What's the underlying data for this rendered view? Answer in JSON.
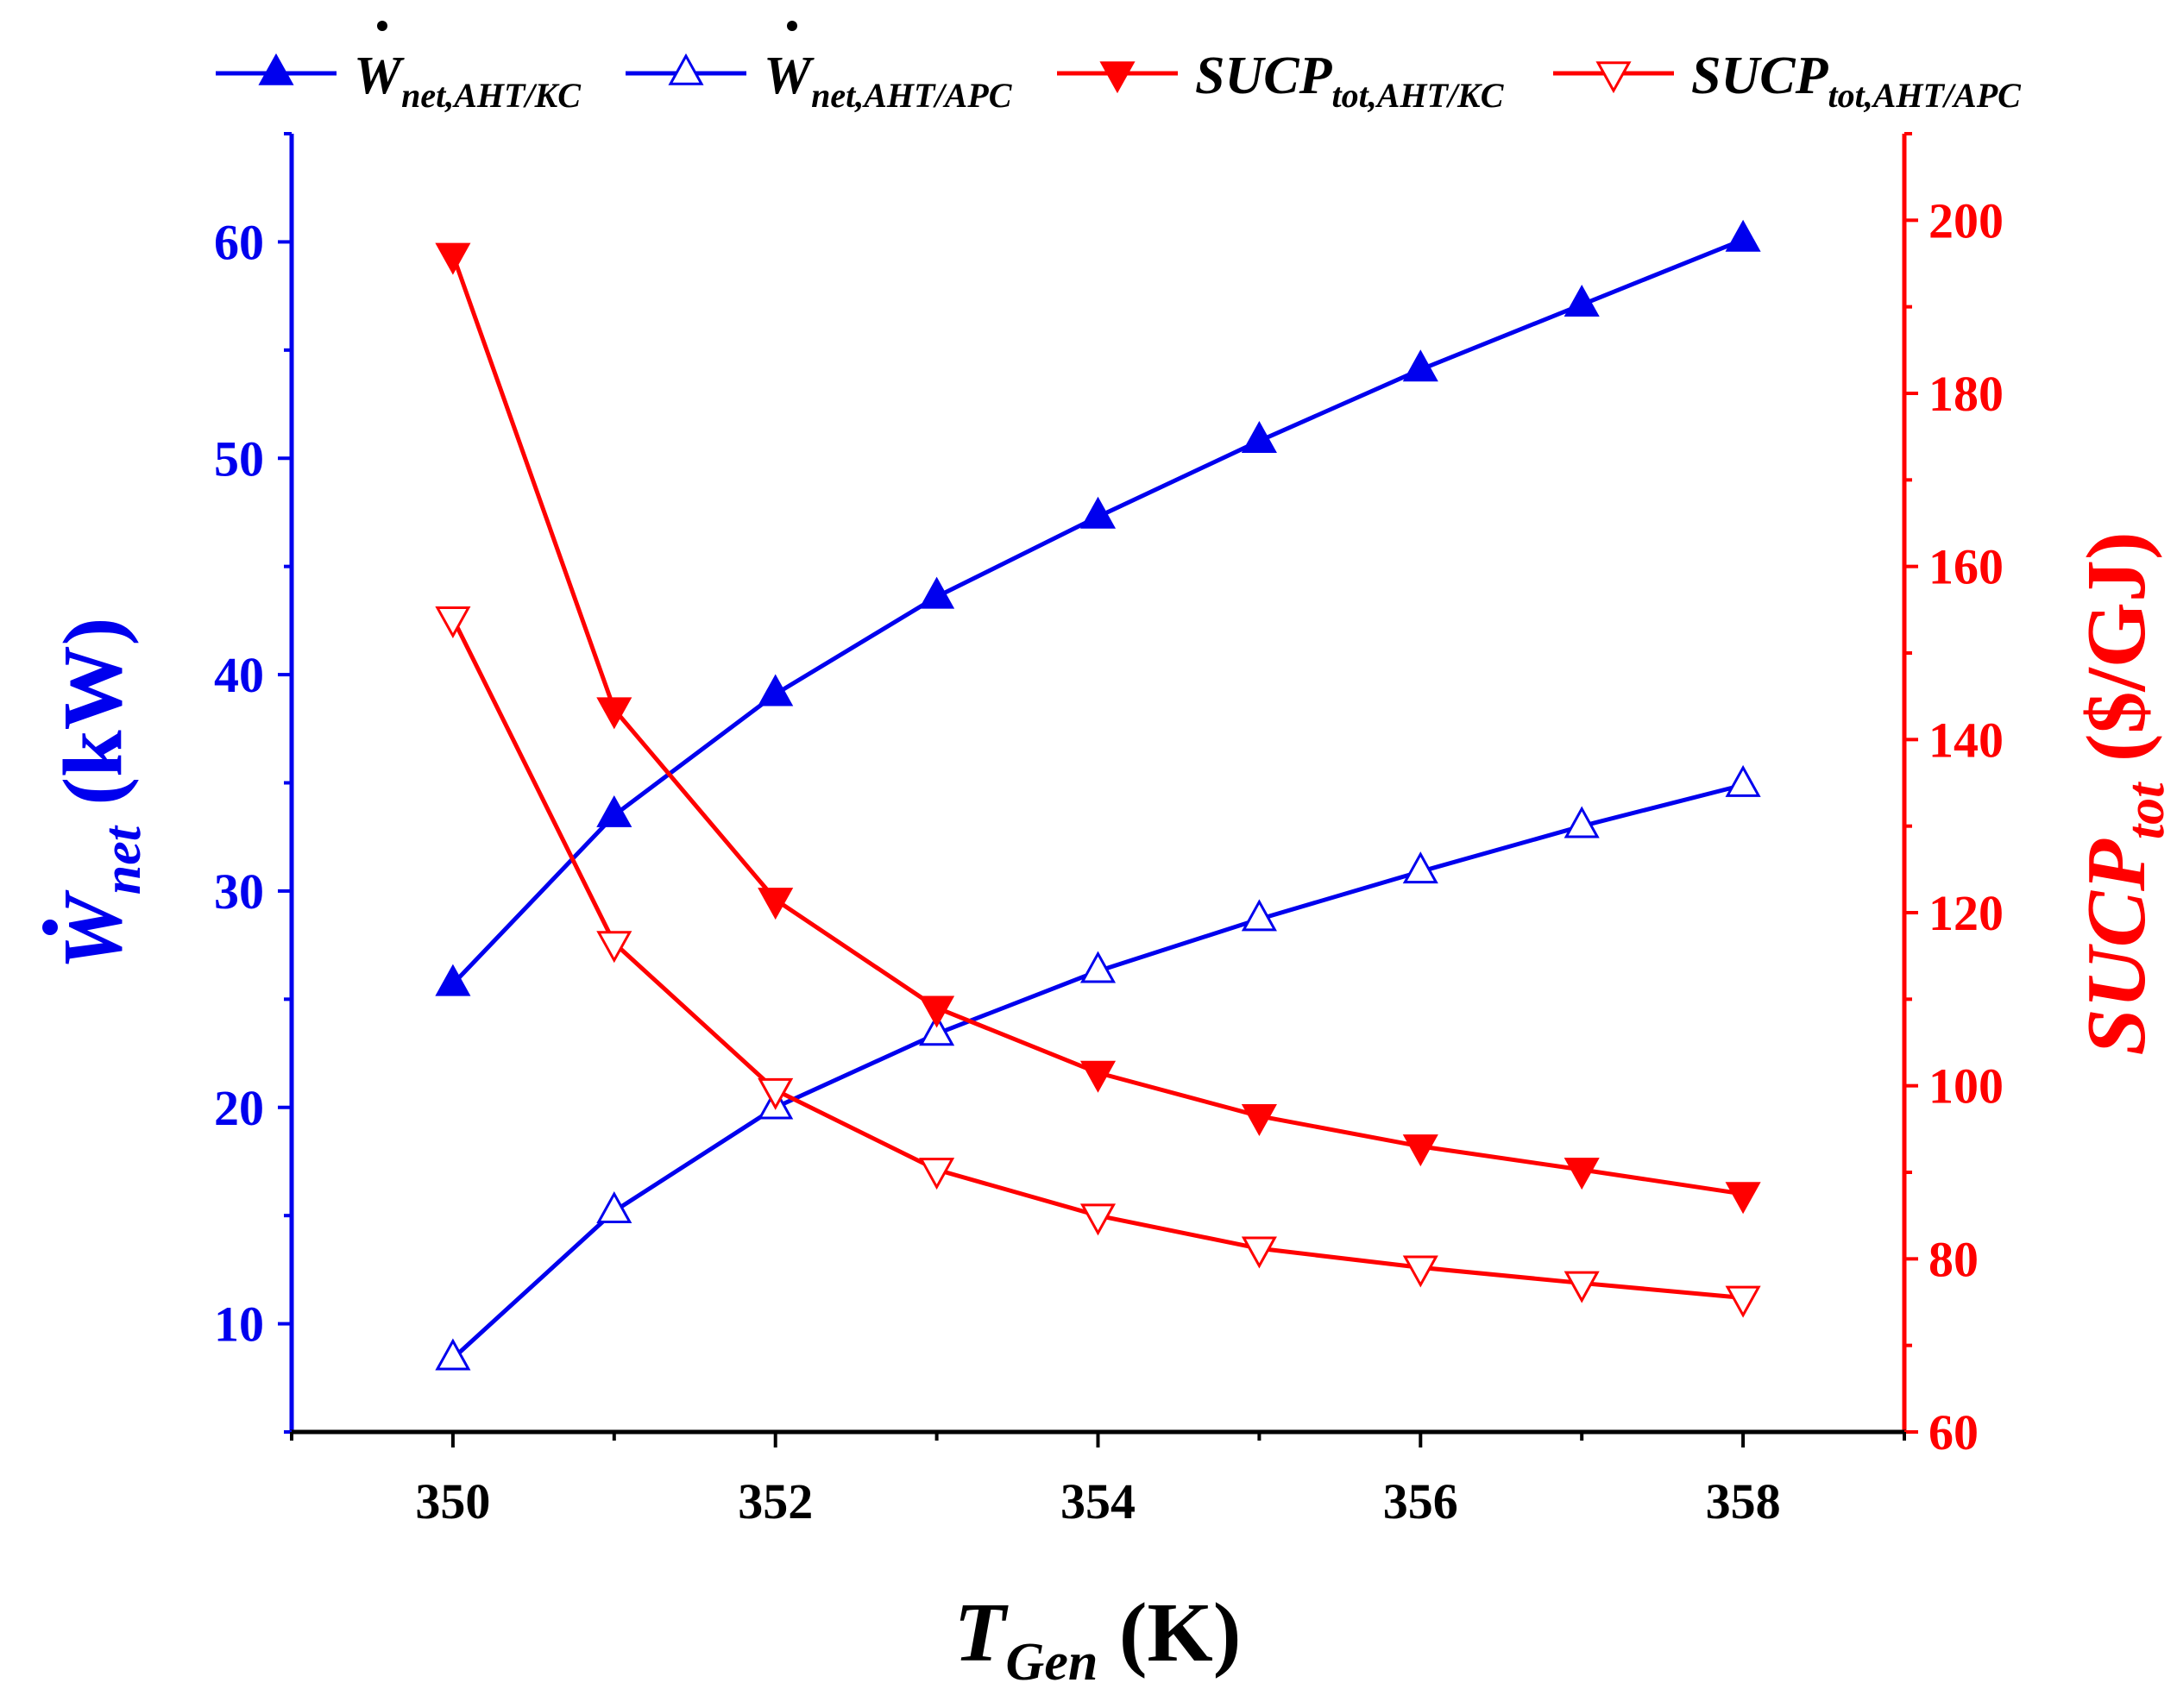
{
  "chart_data": {
    "type": "line",
    "x": [
      350,
      351,
      352,
      353,
      354,
      355,
      356,
      357,
      358
    ],
    "xlim": [
      349,
      359
    ],
    "xticks": [
      "350",
      "352",
      "354",
      "356",
      "358"
    ],
    "xticks_values": [
      350,
      352,
      354,
      356,
      358
    ],
    "xlabel": {
      "main": "T",
      "sub": "Gen",
      "unit": " (K)"
    },
    "y_left": {
      "label": {
        "main": "W",
        "sub": "net",
        "unit": " (kW)"
      },
      "lim": [
        5,
        65
      ],
      "ticks": [
        "10",
        "20",
        "30",
        "40",
        "50",
        "60"
      ],
      "ticks_values": [
        10,
        20,
        30,
        40,
        50,
        60
      ],
      "color": "#0000ee"
    },
    "y_right": {
      "label": {
        "main": "SUCP",
        "sub": "tot",
        "unit": " ($/GJ)"
      },
      "lim": [
        60,
        210
      ],
      "ticks": [
        "60",
        "80",
        "100",
        "120",
        "140",
        "160",
        "180",
        "200"
      ],
      "ticks_values": [
        60,
        80,
        100,
        120,
        140,
        160,
        180,
        200
      ],
      "color": "#ff0000"
    },
    "series": [
      {
        "name": "W",
        "sub": "net,AHT/KC",
        "axis": "left",
        "marker": "triangle-up",
        "filled": true,
        "color": "#0000ee",
        "values": [
          25.7,
          33.5,
          39.1,
          43.6,
          47.3,
          50.8,
          54.1,
          57.1,
          60.1
        ]
      },
      {
        "name": "W",
        "sub": "net,AHT/APC",
        "axis": "left",
        "marker": "triangle-up",
        "filled": false,
        "color": "#0000ee",
        "values": [
          8.4,
          15.2,
          20.0,
          23.4,
          26.3,
          28.7,
          30.9,
          33.0,
          34.9
        ]
      },
      {
        "name": "SUCP",
        "sub": "tot,AHT/KC",
        "axis": "right",
        "marker": "triangle-down",
        "filled": true,
        "color": "#ff0000",
        "values": [
          196,
          143.5,
          121.5,
          109,
          101.5,
          96.5,
          93,
          90.3,
          87.5
        ]
      },
      {
        "name": "SUCP",
        "sub": "tot,AHT/APC",
        "axis": "right",
        "marker": "triangle-down",
        "filled": false,
        "color": "#ff0000",
        "values": [
          154,
          116.5,
          99.5,
          90.3,
          85,
          81.2,
          79,
          77.2,
          75.5
        ]
      }
    ]
  }
}
